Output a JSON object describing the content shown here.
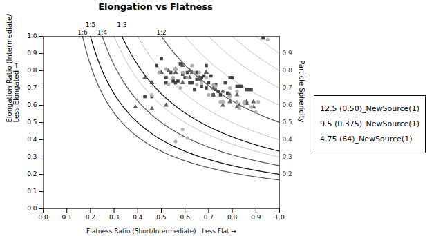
{
  "chart_data": {
    "type": "scatter",
    "title": "Elongation vs Flatness",
    "xlabel": "Flatness Ratio (Short/Intermediate)   Less Flat →",
    "ylabel": "Elongation Ratio (Intermediate/Long)\nLess Elongated →",
    "y2label": "Particle Sphericity",
    "xlim": [
      0.0,
      1.0
    ],
    "ylim": [
      0.0,
      1.0
    ],
    "xticks": [
      {
        "value": 0.0,
        "label": "0.0"
      },
      0.1,
      0.2,
      0.3,
      0.4,
      0.5,
      0.6,
      0.7,
      0.8,
      0.9,
      {
        "value": 1.0,
        "label": "1.0"
      }
    ],
    "yticks": [
      {
        "value": 0.0,
        "label": "0.0"
      },
      0.1,
      0.2,
      0.3,
      0.4,
      0.5,
      0.6,
      0.7,
      0.8,
      0.9,
      {
        "value": 1.0,
        "label": "1.0"
      }
    ],
    "grid": false,
    "legend": "right",
    "ratio_curves": [
      {
        "label": "1:6",
        "k": 0.16667,
        "color": "#555555"
      },
      {
        "label": "1:5",
        "k": 0.2,
        "color": "#111111"
      },
      {
        "label": "1:4",
        "k": 0.25,
        "color": "#555555"
      },
      {
        "label": "1:3",
        "k": 0.33333,
        "color": "#111111"
      },
      {
        "label": "1:2",
        "k": 0.5,
        "color": "#555555"
      }
    ],
    "sphericity_curves": {
      "values": [
        0.9,
        0.8,
        0.7,
        0.6,
        0.5,
        0.4,
        0.3,
        0.2
      ],
      "color": "#aaaaaa",
      "label_color": "#404040"
    },
    "series": [
      {
        "name": "12.5 (0.50)_NewSource(1)",
        "marker": "square",
        "color": "#404040",
        "x": [
          0.43,
          0.48,
          0.5,
          0.52,
          0.54,
          0.56,
          0.58,
          0.6,
          0.62,
          0.65,
          0.67,
          0.69,
          0.55,
          0.59,
          0.63,
          0.67,
          0.71,
          0.75,
          0.79,
          0.83,
          0.87,
          0.57,
          0.61,
          0.65,
          0.69,
          0.73,
          0.77,
          0.93,
          0.56,
          0.7,
          0.74,
          0.8,
          0.84,
          0.88,
          0.46,
          0.52,
          0.64,
          0.68,
          0.72,
          0.78,
          0.82,
          0.86
        ],
        "values": [
          0.65,
          0.83,
          0.87,
          0.76,
          0.79,
          0.81,
          0.84,
          0.76,
          0.73,
          0.79,
          0.76,
          0.83,
          0.74,
          0.78,
          0.73,
          0.71,
          0.77,
          0.66,
          0.76,
          0.71,
          0.69,
          0.74,
          0.79,
          0.75,
          0.7,
          0.72,
          0.73,
          0.99,
          0.73,
          0.73,
          0.68,
          0.76,
          0.71,
          0.69,
          0.65,
          0.73,
          0.69,
          0.77,
          0.66,
          0.67,
          0.71,
          0.69
        ]
      },
      {
        "name": "9.5 (0.375)_NewSource(1)",
        "marker": "triangle",
        "color": "#606060",
        "x": [
          0.39,
          0.43,
          0.46,
          0.5,
          0.53,
          0.56,
          0.59,
          0.62,
          0.66,
          0.69,
          0.72,
          0.76,
          0.79,
          0.82,
          0.86,
          0.89,
          0.56,
          0.59,
          0.63,
          0.66,
          0.69,
          0.72,
          0.76,
          0.79,
          0.82,
          0.86,
          0.89,
          0.46,
          0.52,
          0.62,
          0.73,
          0.83
        ],
        "values": [
          0.59,
          0.76,
          0.73,
          0.79,
          0.8,
          0.79,
          0.73,
          0.76,
          0.75,
          0.79,
          0.66,
          0.68,
          0.62,
          0.66,
          0.62,
          0.62,
          0.81,
          0.83,
          0.79,
          0.76,
          0.79,
          0.7,
          0.6,
          0.66,
          0.59,
          0.61,
          0.59,
          0.58,
          0.6,
          0.8,
          0.69,
          0.6
        ]
      },
      {
        "name": "4.75 (64)_NewSource(1)",
        "marker": "circle",
        "color": "#b0b0b0",
        "x": [
          0.46,
          0.49,
          0.52,
          0.55,
          0.58,
          0.61,
          0.64,
          0.67,
          0.7,
          0.73,
          0.76,
          0.79,
          0.82,
          0.85,
          0.88,
          0.91,
          0.56,
          0.59,
          0.63,
          0.66,
          0.69,
          0.72,
          0.76,
          0.79,
          0.82,
          0.85,
          0.88,
          0.59,
          0.61,
          0.56,
          0.95,
          0.53,
          0.65,
          0.75,
          0.83,
          0.9
        ],
        "values": [
          0.66,
          0.79,
          0.81,
          0.76,
          0.7,
          0.76,
          0.79,
          0.73,
          0.66,
          0.71,
          0.62,
          0.65,
          0.68,
          0.62,
          0.59,
          0.62,
          0.81,
          0.79,
          0.83,
          0.79,
          0.76,
          0.72,
          0.62,
          0.7,
          0.62,
          0.61,
          0.59,
          0.46,
          0.41,
          0.39,
          0.98,
          0.72,
          0.72,
          0.62,
          0.58,
          0.56
        ]
      }
    ]
  }
}
